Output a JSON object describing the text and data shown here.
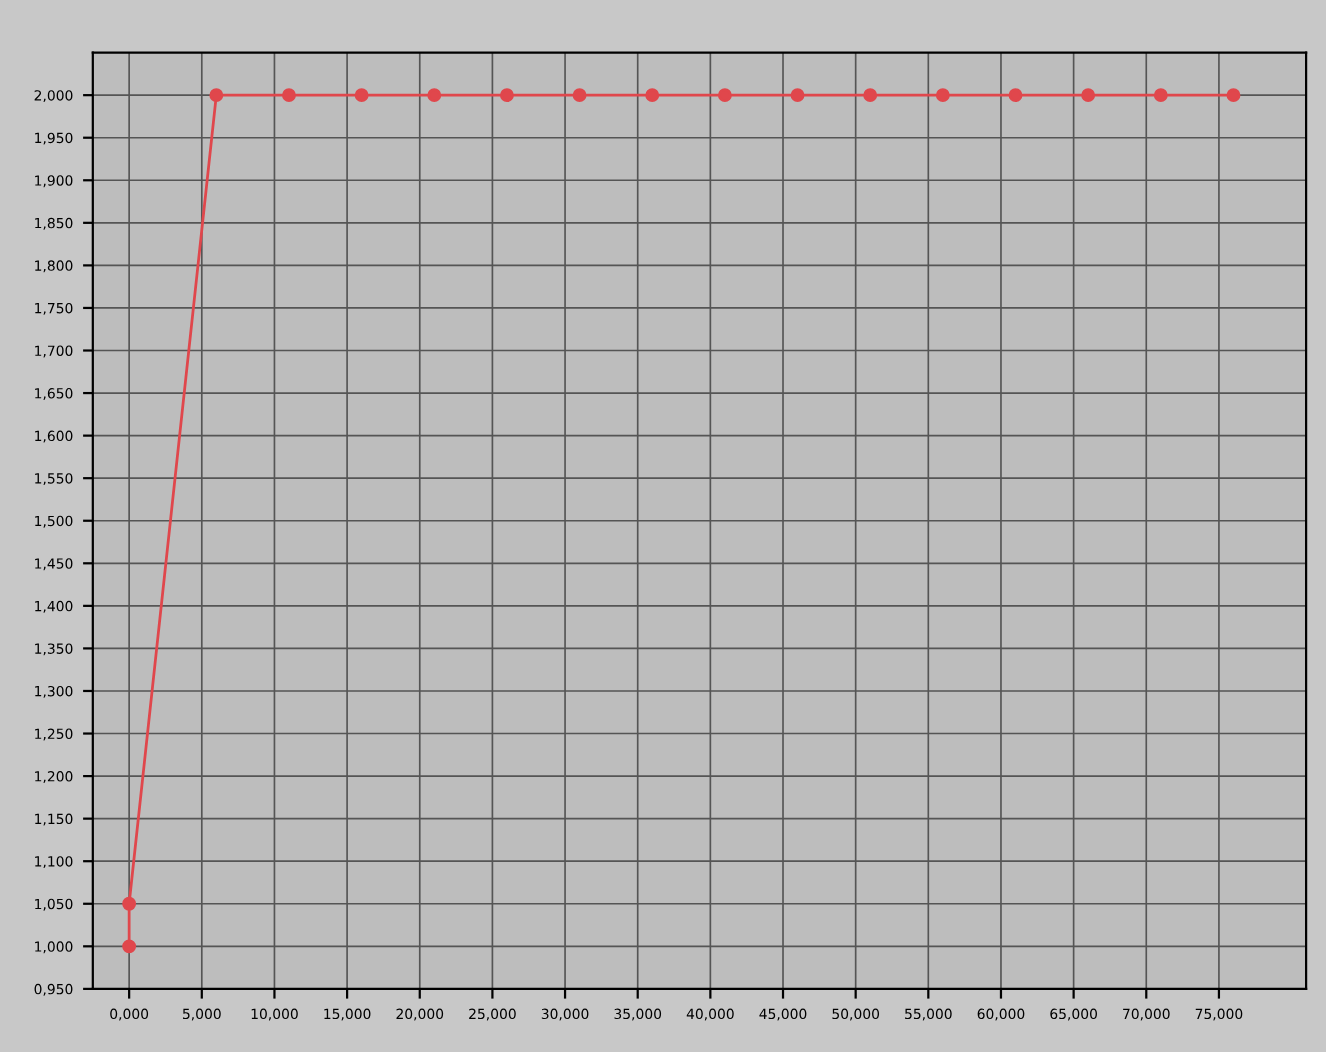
{
  "chart_data": {
    "type": "line",
    "series": [
      {
        "color": "#e0474c",
        "x": [
          0,
          0,
          6,
          11,
          16,
          21,
          26,
          31,
          36,
          41,
          46,
          51,
          56,
          61,
          66,
          71,
          76
        ],
        "values": [
          1.0,
          1.05,
          2.0,
          2.0,
          2.0,
          2.0,
          2.0,
          2.0,
          2.0,
          2.0,
          2.0,
          2.0,
          2.0,
          2.0,
          2.0,
          2.0,
          2.0
        ]
      }
    ],
    "xlim": [
      -2.5,
      81
    ],
    "xticks": [
      {
        "value": 0,
        "label": "0,000"
      },
      {
        "value": 5,
        "label": "5,000"
      },
      {
        "value": 10,
        "label": "10,000"
      },
      {
        "value": 15,
        "label": "15,000"
      },
      {
        "value": 20,
        "label": "20,000"
      },
      {
        "value": 25,
        "label": "25,000"
      },
      {
        "value": 30,
        "label": "30,000"
      },
      {
        "value": 35,
        "label": "35,000"
      },
      {
        "value": 40,
        "label": "40,000"
      },
      {
        "value": 45,
        "label": "45,000"
      },
      {
        "value": 50,
        "label": "50,000"
      },
      {
        "value": 55,
        "label": "55,000"
      },
      {
        "value": 60,
        "label": "60,000"
      },
      {
        "value": 65,
        "label": "65,000"
      },
      {
        "value": 70,
        "label": "70,000"
      },
      {
        "value": 75,
        "label": "75,000"
      }
    ],
    "ylim": [
      0.95,
      2.05
    ],
    "yticks": [
      {
        "value": 0.95,
        "label": "0,950"
      },
      {
        "value": 1.0,
        "label": "1,000"
      },
      {
        "value": 1.05,
        "label": "1,050"
      },
      {
        "value": 1.1,
        "label": "1,100"
      },
      {
        "value": 1.15,
        "label": "1,150"
      },
      {
        "value": 1.2,
        "label": "1,200"
      },
      {
        "value": 1.25,
        "label": "1,250"
      },
      {
        "value": 1.3,
        "label": "1,300"
      },
      {
        "value": 1.35,
        "label": "1,350"
      },
      {
        "value": 1.4,
        "label": "1,400"
      },
      {
        "value": 1.45,
        "label": "1,450"
      },
      {
        "value": 1.5,
        "label": "1,500"
      },
      {
        "value": 1.55,
        "label": "1,550"
      },
      {
        "value": 1.6,
        "label": "1,600"
      },
      {
        "value": 1.65,
        "label": "1,650"
      },
      {
        "value": 1.7,
        "label": "1,700"
      },
      {
        "value": 1.75,
        "label": "1,750"
      },
      {
        "value": 1.8,
        "label": "1,800"
      },
      {
        "value": 1.85,
        "label": "1,850"
      },
      {
        "value": 1.9,
        "label": "1,900"
      },
      {
        "value": 1.95,
        "label": "1,950"
      },
      {
        "value": 2.0,
        "label": "2,000"
      }
    ],
    "grid": true,
    "marker": "circle",
    "line_style": "solid",
    "legend": false
  }
}
